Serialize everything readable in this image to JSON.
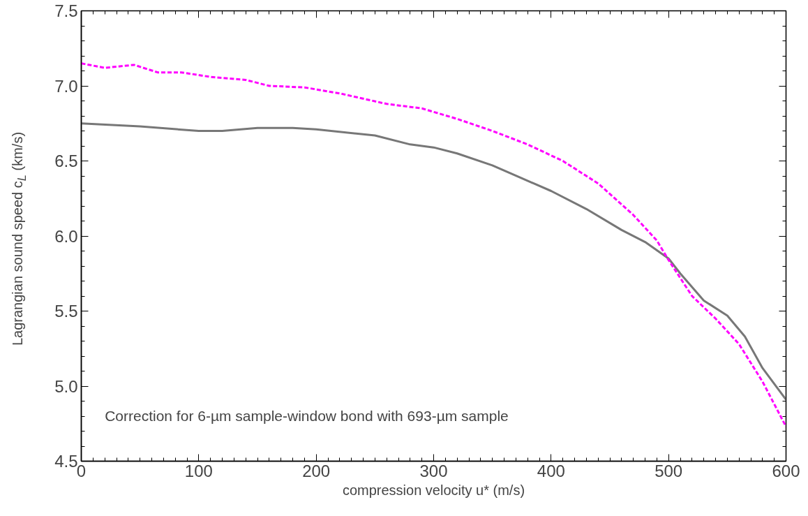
{
  "chart_data": {
    "type": "line",
    "xlabel": "compression velocity u* (m/s)",
    "ylabel": "Lagrangian sound speed c$_{L}$ (km/s)",
    "xlim": [
      0,
      600
    ],
    "ylim": [
      4.5,
      7.5
    ],
    "xticks": [
      0,
      100,
      200,
      300,
      400,
      500,
      600
    ],
    "yticks": [
      {
        "value": 4.5,
        "label": "4.5"
      },
      {
        "value": 5.0,
        "label": "5.0"
      },
      {
        "value": 5.5,
        "label": "5.5"
      },
      {
        "value": 6.0,
        "label": "6.0"
      },
      {
        "value": 6.5,
        "label": "6.5"
      },
      {
        "value": 7.0,
        "label": "7.0"
      },
      {
        "value": 7.5,
        "label": "7.5"
      }
    ],
    "grid": false,
    "marker": "none",
    "annotations": [
      "Correction for 6-µm sample-window bond with 693-µm sample"
    ],
    "series": [
      {
        "color": "#777777",
        "line_style": "solid",
        "x": [
          0,
          50,
          100,
          120,
          150,
          180,
          200,
          250,
          280,
          300,
          320,
          350,
          400,
          430,
          460,
          480,
          500,
          510,
          530,
          550,
          565,
          580,
          600
        ],
        "values": [
          6.75,
          6.73,
          6.7,
          6.7,
          6.72,
          6.72,
          6.71,
          6.67,
          6.61,
          6.59,
          6.55,
          6.47,
          6.3,
          6.18,
          6.04,
          5.96,
          5.85,
          5.75,
          5.57,
          5.47,
          5.33,
          5.12,
          4.91
        ]
      },
      {
        "color": "#ff00ff",
        "line_style": "dashed",
        "x": [
          0,
          20,
          45,
          65,
          85,
          110,
          140,
          160,
          190,
          220,
          260,
          290,
          320,
          350,
          380,
          410,
          440,
          470,
          490,
          500,
          520,
          540,
          560,
          580,
          600
        ],
        "values": [
          7.15,
          7.12,
          7.14,
          7.09,
          7.09,
          7.06,
          7.04,
          7.0,
          6.99,
          6.95,
          6.88,
          6.85,
          6.78,
          6.7,
          6.61,
          6.5,
          6.35,
          6.14,
          5.97,
          5.84,
          5.6,
          5.45,
          5.28,
          5.03,
          4.73
        ]
      }
    ]
  }
}
